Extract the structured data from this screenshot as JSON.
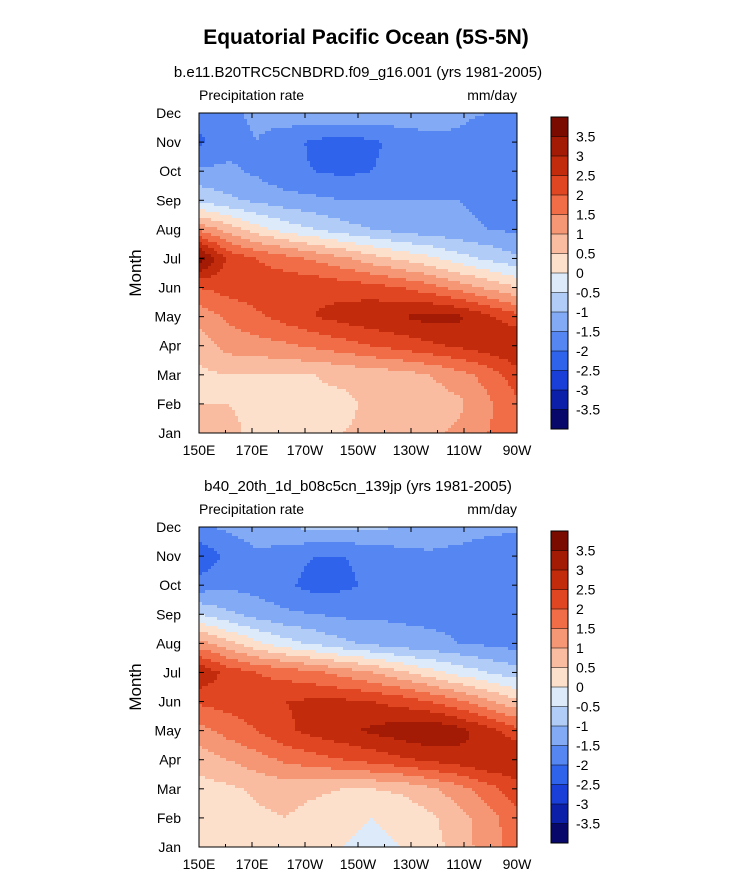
{
  "figure": {
    "title": "Equatorial Pacific Ocean (5S-5N)"
  },
  "chart_data": [
    {
      "type": "heatmap",
      "title": "b.e11.B20TRC5CNBDRD.f09_g16.001 (yrs 1981-2005)",
      "left_label": "Precipitation rate",
      "right_label": "mm/day",
      "xlabel": "",
      "ylabel": "Month",
      "x_ticks": [
        "150E",
        "170E",
        "170W",
        "150W",
        "130W",
        "110W",
        "90W"
      ],
      "y_ticks": [
        "Jan",
        "Feb",
        "Mar",
        "Apr",
        "May",
        "Jun",
        "Jul",
        "Aug",
        "Sep",
        "Oct",
        "Nov",
        "Dec"
      ],
      "levels": [
        -3.5,
        -3,
        -2.5,
        -2,
        -1.5,
        -1,
        -0.5,
        0,
        0.5,
        1,
        1.5,
        2,
        2.5,
        3,
        3.5
      ],
      "colorbar_labels": [
        "3.5",
        "3",
        "2.5",
        "2",
        "1.5",
        "1",
        "0.5",
        "0",
        "-0.5",
        "-1",
        "-1.5",
        "-2",
        "-2.5",
        "-3",
        "-3.5"
      ],
      "colors": [
        "#08086b",
        "#0c1fa8",
        "#1a3fd8",
        "#2f63ec",
        "#5586f2",
        "#82aaf5",
        "#b1cdf7",
        "#dceaf9",
        "#fde0cc",
        "#f9bca0",
        "#f59774",
        "#f06d48",
        "#e04622",
        "#c22c0d",
        "#a31a05",
        "#7a0b00"
      ],
      "grid_values": [
        [
          0.6,
          0.6,
          0.4,
          0.4,
          0.4,
          0.5,
          0.6,
          0.7,
          0.9,
          1.1,
          1.5,
          1.8
        ],
        [
          0.5,
          0.5,
          0.4,
          0.4,
          0.4,
          0.4,
          0.6,
          0.6,
          0.7,
          0.9,
          1.4,
          1.9
        ],
        [
          0.4,
          0.5,
          0.5,
          0.5,
          0.5,
          0.6,
          0.7,
          0.8,
          1.0,
          1.3,
          1.7,
          2.3
        ],
        [
          0.7,
          1.2,
          1.3,
          1.4,
          1.6,
          1.8,
          2.0,
          2.2,
          2.4,
          2.6,
          2.8,
          3.0
        ],
        [
          1.2,
          1.6,
          1.9,
          2.2,
          2.5,
          2.7,
          2.9,
          3.0,
          3.2,
          3.1,
          2.6,
          2.2
        ],
        [
          2.0,
          2.2,
          2.3,
          2.4,
          2.4,
          2.3,
          2.2,
          2.0,
          1.7,
          1.3,
          0.9,
          0.5
        ],
        [
          3.8,
          2.4,
          2.0,
          1.7,
          1.4,
          1.1,
          0.7,
          0.4,
          0.1,
          -0.3,
          -0.6,
          -0.9
        ],
        [
          1.4,
          0.8,
          0.2,
          -0.2,
          -0.5,
          -0.8,
          -1.0,
          -1.2,
          -1.3,
          -1.4,
          -1.5,
          -1.6
        ],
        [
          -0.6,
          -0.9,
          -1.1,
          -1.3,
          -1.4,
          -1.5,
          -1.5,
          -1.5,
          -1.5,
          -1.5,
          -1.6,
          -1.7
        ],
        [
          -1.4,
          -1.4,
          -1.6,
          -1.9,
          -2.0,
          -2.1,
          -2.0,
          -1.8,
          -1.6,
          -1.5,
          -1.6,
          -1.8
        ],
        [
          -2.1,
          -1.7,
          -1.5,
          -1.8,
          -2.1,
          -2.2,
          -2.1,
          -1.8,
          -1.6,
          -1.6,
          -1.8,
          -2.0
        ],
        [
          -1.8,
          -1.6,
          -1.4,
          -1.2,
          -1.1,
          -1.1,
          -1.1,
          -1.2,
          -1.3,
          -1.4,
          -1.5,
          -1.6
        ]
      ]
    },
    {
      "type": "heatmap",
      "title": "b40_20th_1d_b08c5cn_139jp (yrs 1981-2005)",
      "left_label": "Precipitation rate",
      "right_label": "mm/day",
      "xlabel": "",
      "ylabel": "Month",
      "x_ticks": [
        "150E",
        "170E",
        "170W",
        "150W",
        "130W",
        "110W",
        "90W"
      ],
      "y_ticks": [
        "Jan",
        "Feb",
        "Mar",
        "Apr",
        "May",
        "Jun",
        "Jul",
        "Aug",
        "Sep",
        "Oct",
        "Nov",
        "Dec"
      ],
      "levels": [
        -3.5,
        -3,
        -2.5,
        -2,
        -1.5,
        -1,
        -0.5,
        0,
        0.5,
        1,
        1.5,
        2,
        2.5,
        3,
        3.5
      ],
      "colorbar_labels": [
        "3.5",
        "3",
        "2.5",
        "2",
        "1.5",
        "1",
        "0.5",
        "0",
        "-0.5",
        "-1",
        "-1.5",
        "-2",
        "-2.5",
        "-3",
        "-3.5"
      ],
      "colors": [
        "#08086b",
        "#0c1fa8",
        "#1a3fd8",
        "#2f63ec",
        "#5586f2",
        "#82aaf5",
        "#b1cdf7",
        "#dceaf9",
        "#fde0cc",
        "#f9bca0",
        "#f59774",
        "#f06d48",
        "#e04622",
        "#c22c0d",
        "#a31a05",
        "#7a0b00"
      ],
      "grid_values": [
        [
          0.4,
          0.2,
          0.3,
          0.4,
          0.3,
          0.0,
          -0.1,
          0.0,
          0.3,
          0.7,
          1.3,
          1.7
        ],
        [
          0.2,
          0.2,
          0.4,
          0.5,
          0.3,
          0.1,
          0.0,
          0.1,
          0.4,
          0.8,
          1.3,
          1.8
        ],
        [
          0.3,
          0.4,
          0.6,
          0.7,
          0.6,
          0.5,
          0.5,
          0.6,
          0.9,
          1.3,
          1.8,
          2.3
        ],
        [
          0.7,
          1.0,
          1.3,
          1.6,
          1.8,
          2.0,
          2.2,
          2.4,
          2.6,
          2.8,
          3.0,
          3.0
        ],
        [
          1.3,
          1.7,
          2.0,
          2.4,
          2.7,
          2.9,
          3.1,
          3.3,
          3.5,
          3.2,
          2.7,
          2.2
        ],
        [
          2.1,
          2.2,
          2.3,
          2.5,
          2.6,
          2.6,
          2.5,
          2.3,
          2.0,
          1.6,
          1.1,
          0.6
        ],
        [
          3.0,
          2.3,
          2.0,
          1.8,
          1.6,
          1.3,
          1.0,
          0.6,
          0.2,
          -0.2,
          -0.5,
          -0.8
        ],
        [
          1.2,
          0.7,
          0.1,
          -0.3,
          -0.6,
          -0.9,
          -1.1,
          -1.3,
          -1.4,
          -1.5,
          -1.6,
          -1.7
        ],
        [
          -0.5,
          -0.9,
          -1.2,
          -1.4,
          -1.5,
          -1.6,
          -1.6,
          -1.6,
          -1.6,
          -1.6,
          -1.7,
          -1.8
        ],
        [
          -1.8,
          -1.6,
          -1.7,
          -1.9,
          -2.2,
          -2.1,
          -1.9,
          -1.7,
          -1.6,
          -1.7,
          -1.9,
          -2.0
        ],
        [
          -2.4,
          -1.9,
          -1.6,
          -1.8,
          -2.0,
          -2.0,
          -1.9,
          -1.7,
          -1.6,
          -1.7,
          -1.9,
          -2.0
        ],
        [
          -1.6,
          -1.4,
          -1.2,
          -1.0,
          -0.9,
          -0.9,
          -0.9,
          -1.0,
          -1.1,
          -1.2,
          -1.3,
          -1.4
        ]
      ]
    }
  ]
}
